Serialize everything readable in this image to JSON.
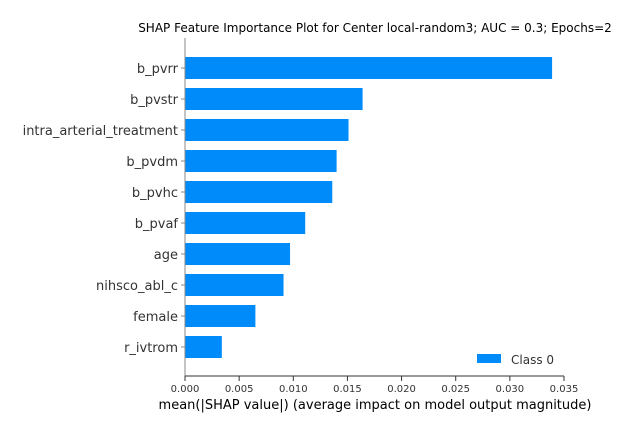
{
  "chart_data": {
    "type": "bar",
    "orientation": "horizontal",
    "title": "SHAP Feature Importance Plot for Center local-random3; AUC = 0.3; Epochs=2",
    "xlabel": "mean(|SHAP value|) (average impact on model output magnitude)",
    "categories": [
      "b_pvrr",
      "b_pvstr",
      "intra_arterial_treatment",
      "b_pvdm",
      "b_pvhc",
      "b_pvaf",
      "age",
      "nihsco_abl_c",
      "female",
      "r_ivtrom"
    ],
    "series": [
      {
        "name": "Class 0",
        "color": "#008bfb",
        "values": [
          0.0339,
          0.0164,
          0.0151,
          0.014,
          0.0136,
          0.0111,
          0.0097,
          0.0091,
          0.0065,
          0.0034
        ]
      }
    ],
    "xlim": [
      0,
      0.035
    ],
    "xticks": [
      "0.000",
      "0.005",
      "0.010",
      "0.015",
      "0.020",
      "0.025",
      "0.030",
      "0.035"
    ],
    "legend": {
      "label": "Class 0",
      "position": "bottom-right"
    },
    "grid": false
  }
}
